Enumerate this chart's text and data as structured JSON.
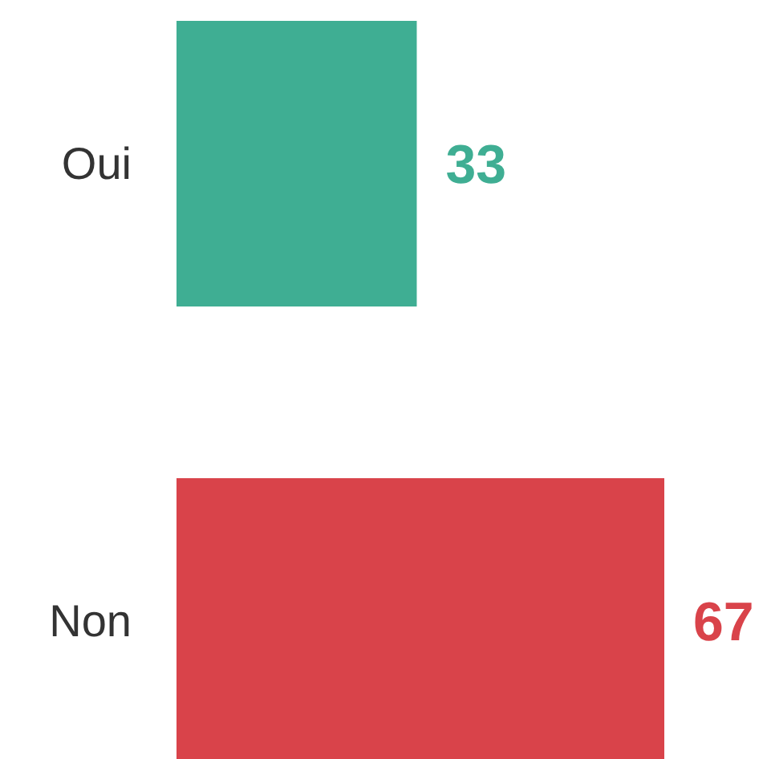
{
  "chart_data": {
    "type": "bar",
    "orientation": "horizontal",
    "categories": [
      "Oui",
      "Non"
    ],
    "values": [
      33,
      67
    ],
    "colors": [
      "#3fae93",
      "#d9434a"
    ],
    "data_labels": true
  }
}
